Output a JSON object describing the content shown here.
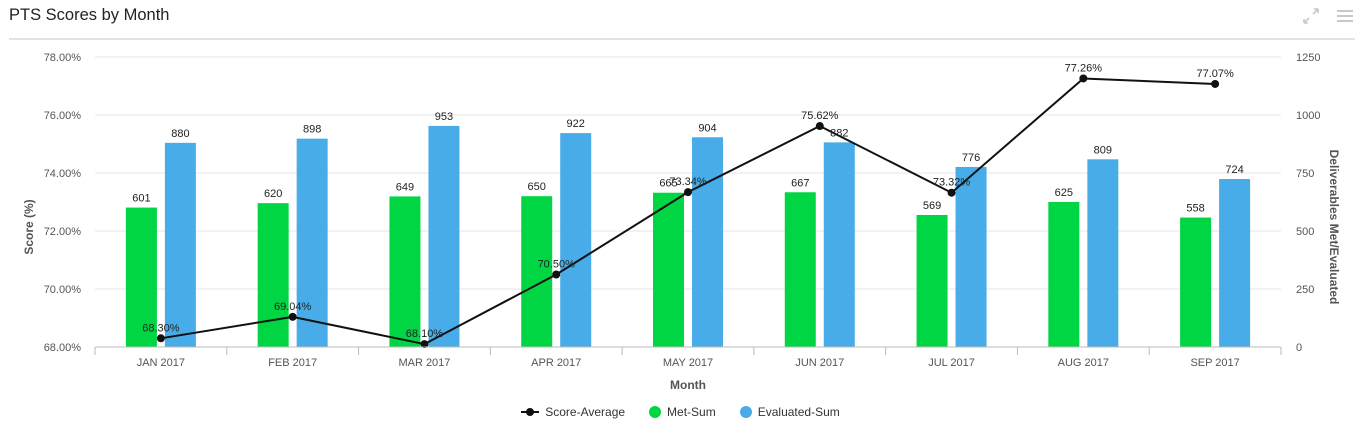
{
  "header": {
    "title": "PTS Scores by Month",
    "icons": [
      "expand-icon",
      "menu-icon"
    ]
  },
  "colors": {
    "met": "#00d643",
    "evaluated": "#48ace8",
    "score": "#111111",
    "grid": "#e6e6e6"
  },
  "chart_data": {
    "type": "bar",
    "categories": [
      "JAN 2017",
      "FEB 2017",
      "MAR 2017",
      "APR 2017",
      "MAY 2017",
      "JUN 2017",
      "JUL 2017",
      "AUG 2017",
      "SEP 2017"
    ],
    "xlabel": "Month",
    "ylabel": "Score (%)",
    "y2label": "Deliverables Met/Evaluated",
    "ylim": [
      68,
      78
    ],
    "y2lim": [
      0,
      1250
    ],
    "yticks": [
      "68.00%",
      "70.00%",
      "72.00%",
      "74.00%",
      "76.00%",
      "78.00%"
    ],
    "y2ticks": [
      "0",
      "250",
      "500",
      "750",
      "1000",
      "1250"
    ],
    "series": [
      {
        "name": "Met-Sum",
        "type": "bar",
        "axis": "right",
        "values": [
          601,
          620,
          649,
          650,
          665,
          667,
          569,
          625,
          558
        ],
        "labels": [
          "601",
          "620",
          "649",
          "650",
          "665",
          "667",
          "569",
          "625",
          "558"
        ]
      },
      {
        "name": "Evaluated-Sum",
        "type": "bar",
        "axis": "right",
        "values": [
          880,
          898,
          953,
          922,
          904,
          882,
          776,
          809,
          724
        ],
        "labels": [
          "880",
          "898",
          "953",
          "922",
          "904",
          "882",
          "776",
          "809",
          "724"
        ]
      },
      {
        "name": "Score-Average",
        "type": "line",
        "axis": "left",
        "values": [
          68.3,
          69.04,
          68.1,
          70.5,
          73.34,
          75.62,
          73.32,
          77.26,
          77.07
        ],
        "labels": [
          "68.30%",
          "69.04%",
          "68.10%",
          "70.50%",
          "73.34%",
          "75.62%",
          "73.32%",
          "77.26%",
          "77.07%"
        ]
      }
    ],
    "legend": [
      "Score-Average",
      "Met-Sum",
      "Evaluated-Sum"
    ],
    "legend_position": "bottom",
    "grid": true
  }
}
